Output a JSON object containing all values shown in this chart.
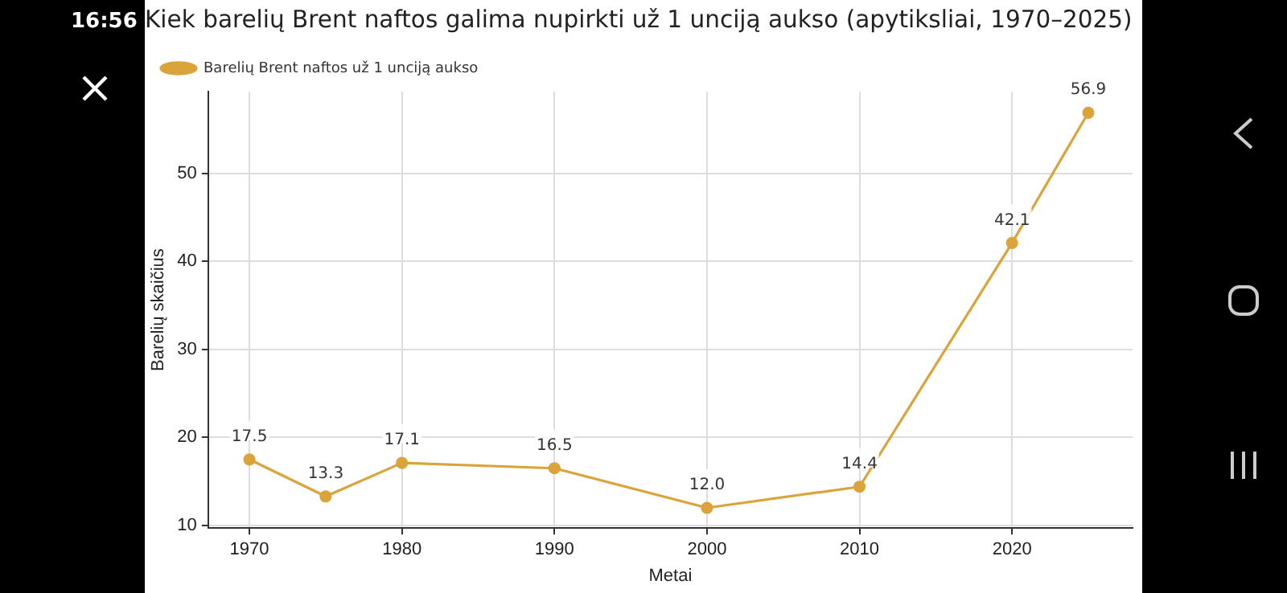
{
  "chart_data": {
    "type": "line",
    "title": "Kiek barelių Brent naftos galima nupirkti už 1 unciją aukso (apytiksliai, 1970–2025)",
    "xlabel": "Metai",
    "ylabel": "Barelių skaičius",
    "x": [
      1970,
      1975,
      1980,
      1990,
      2000,
      2010,
      2020,
      2025
    ],
    "series": [
      {
        "name": "Barelių Brent naftos už 1 unciją aukso",
        "color": "#dba43a",
        "values": [
          17.5,
          13.3,
          17.1,
          16.5,
          12.0,
          14.4,
          42.1,
          56.9
        ],
        "value_labels": [
          "17.5",
          "13.3",
          "17.1",
          "16.5",
          "12.0",
          "14.4",
          "42.1",
          "56.9"
        ]
      }
    ],
    "xlim": [
      1967.3,
      2027.9
    ],
    "xticks": [
      1970,
      1980,
      1990,
      2000,
      2010,
      2020
    ],
    "ylim": [
      9.7,
      59.3
    ],
    "yticks": [
      10,
      20,
      30,
      40,
      50
    ],
    "grid": true,
    "legend": "top left",
    "marker": "circle",
    "line_style": "solid",
    "annotations": [
      "16:56"
    ]
  }
}
